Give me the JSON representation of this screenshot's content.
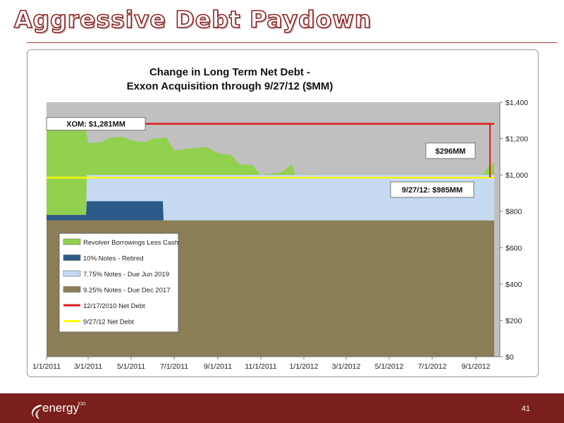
{
  "slide": {
    "title": "Aggressive Debt Paydown",
    "page_number": "41",
    "logo_text": "energy",
    "logo_sup": "XXI"
  },
  "colors": {
    "title_red": "#8f1e1e",
    "footer": "#7a1f1c",
    "revolver": "#92d050",
    "notes_10": "#2e5a8a",
    "notes_775": "#c5d9f1",
    "notes_925": "#8b7d55",
    "red_line": "#e01b1b",
    "yellow_line": "#ffff00",
    "plot_bg": "#c0c0c0"
  },
  "chart_data": {
    "type": "area",
    "title_lines": [
      "Change in Long Term Net Debt -",
      "Exxon Acquisition through 9/27/12 ($MM)"
    ],
    "x_ticks": [
      "1/1/2011",
      "3/1/2011",
      "5/1/2011",
      "7/1/2011",
      "9/1/2011",
      "11/1/2011",
      "1/1/2012",
      "3/1/2012",
      "5/1/2012",
      "7/1/2012",
      "9/1/2012"
    ],
    "y_ticks": [
      "$0",
      "$200",
      "$400",
      "$600",
      "$800",
      "$1,000",
      "$1,200",
      "$1,400"
    ],
    "y_tick_values": [
      0,
      200,
      400,
      600,
      800,
      1000,
      1200,
      1400
    ],
    "xlim": [
      "2011-01-01",
      "2012-10-05"
    ],
    "ylim": [
      0,
      1400
    ],
    "y_axis_side": "right",
    "grid": false,
    "series": [
      {
        "name": "9.25% Notes - Due Dec 2017",
        "color": "#8b7d55",
        "points": [
          [
            "2011-01-01",
            750
          ],
          [
            "2012-09-27",
            750
          ]
        ]
      },
      {
        "name": "7.75% Notes - Due Jun 2019",
        "color": "#c5d9f1",
        "points": [
          [
            "2011-01-01",
            0
          ],
          [
            "2011-02-26",
            0
          ],
          [
            "2011-02-27",
            250
          ],
          [
            "2012-09-27",
            250
          ]
        ]
      },
      {
        "name": "10% Notes - Retired",
        "color": "#2e5a8a",
        "points": [
          [
            "2011-01-01",
            30
          ],
          [
            "2011-02-26",
            30
          ],
          [
            "2011-02-27",
            105
          ],
          [
            "2011-06-15",
            105
          ],
          [
            "2011-06-16",
            0
          ],
          [
            "2012-09-27",
            0
          ]
        ]
      },
      {
        "name": "Revolver Borrowings Less Cash",
        "color": "#92d050",
        "points": [
          [
            "2011-01-01",
            1281
          ],
          [
            "2011-01-20",
            1250
          ],
          [
            "2011-01-25",
            1255
          ],
          [
            "2011-02-01",
            1260
          ],
          [
            "2011-02-25",
            1270
          ],
          [
            "2011-03-01",
            1175
          ],
          [
            "2011-03-20",
            1180
          ],
          [
            "2011-04-01",
            1205
          ],
          [
            "2011-04-20",
            1210
          ],
          [
            "2011-05-01",
            1190
          ],
          [
            "2011-05-20",
            1180
          ],
          [
            "2011-06-01",
            1200
          ],
          [
            "2011-06-20",
            1205
          ],
          [
            "2011-07-01",
            1135
          ],
          [
            "2011-07-20",
            1145
          ],
          [
            "2011-08-01",
            1150
          ],
          [
            "2011-08-15",
            1155
          ],
          [
            "2011-09-01",
            1120
          ],
          [
            "2011-09-20",
            1110
          ],
          [
            "2011-10-01",
            1060
          ],
          [
            "2011-10-20",
            1055
          ],
          [
            "2011-11-01",
            1000
          ],
          [
            "2011-11-20",
            1010
          ],
          [
            "2011-12-01",
            1015
          ],
          [
            "2011-12-15",
            1060
          ],
          [
            "2011-12-20",
            1000
          ],
          [
            "2012-01-01",
            1000
          ],
          [
            "2012-01-15",
            1005
          ],
          [
            "2012-02-01",
            950
          ],
          [
            "2012-02-20",
            960
          ],
          [
            "2012-03-01",
            900
          ],
          [
            "2012-03-20",
            910
          ],
          [
            "2012-04-01",
            890
          ],
          [
            "2012-04-20",
            895
          ],
          [
            "2012-05-01",
            860
          ],
          [
            "2012-05-20",
            870
          ],
          [
            "2012-06-01",
            850
          ],
          [
            "2012-06-20",
            870
          ],
          [
            "2012-07-01",
            880
          ],
          [
            "2012-07-20",
            890
          ],
          [
            "2012-08-01",
            920
          ],
          [
            "2012-08-20",
            960
          ],
          [
            "2012-09-10",
            1000
          ],
          [
            "2012-09-20",
            1050
          ],
          [
            "2012-09-27",
            1070
          ]
        ]
      },
      {
        "name": "12/17/2010 Net Debt",
        "color": "#e01b1b",
        "type": "line",
        "points": [
          [
            "2011-01-01",
            1281
          ],
          [
            "2012-09-27",
            1281
          ]
        ]
      },
      {
        "name": "9/27/12 Net Debt",
        "color": "#ffff00",
        "type": "line",
        "points": [
          [
            "2011-01-01",
            985
          ],
          [
            "2012-09-27",
            985
          ]
        ]
      }
    ],
    "legend": {
      "position": "left-middle",
      "items": [
        {
          "label": "Revolver Borrowings Less Cash",
          "color": "#92d050",
          "kind": "swatch"
        },
        {
          "label": "10% Notes - Retired",
          "color": "#2e5a8a",
          "kind": "swatch"
        },
        {
          "label": "7.75% Notes - Due Jun 2019",
          "color": "#c5d9f1",
          "kind": "swatch"
        },
        {
          "label": "9.25% Notes - Due Dec 2017",
          "color": "#8b7d55",
          "kind": "swatch"
        },
        {
          "label": "12/17/2010 Net Debt",
          "color": "#e01b1b",
          "kind": "line"
        },
        {
          "label": "9/27/12 Net Debt",
          "color": "#ffff00",
          "kind": "line"
        }
      ]
    },
    "annotations": [
      {
        "text": "XOM: $1,281MM",
        "date": "2011-01-01",
        "value": 1281
      },
      {
        "text": "$296MM",
        "date": "2012-09-27",
        "value": 1133
      },
      {
        "text": "9/27/12: $985MM",
        "date": "2012-09-27",
        "value": 985
      }
    ],
    "delta_span": {
      "date": "2012-09-27",
      "from": 985,
      "to": 1281
    }
  }
}
